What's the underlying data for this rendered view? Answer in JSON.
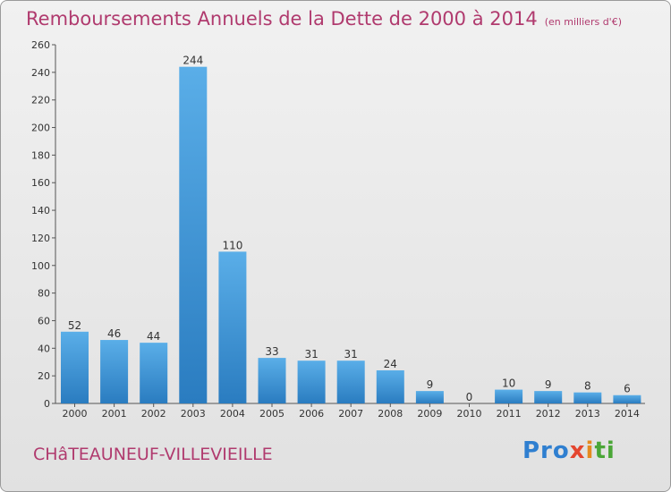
{
  "title": "Remboursements Annuels de la Dette de 2000 à 2014",
  "subtitle": "(en milliers d'€)",
  "commune": "CHâTEAUNEUF-VILLEVIEILLE",
  "logo": {
    "p1": "Pro",
    "p2": "x",
    "p3": "i",
    "p4": "ti"
  },
  "colors": {
    "title": "#b03a6e",
    "bar_light": "#5aaee8",
    "bar_dark": "#2a7cc0"
  },
  "chart_data": {
    "type": "bar",
    "title": "Remboursements Annuels de la Dette de 2000 à 2014",
    "subtitle": "(en milliers d'€)",
    "categories": [
      "2000",
      "2001",
      "2002",
      "2003",
      "2004",
      "2005",
      "2006",
      "2007",
      "2008",
      "2009",
      "2010",
      "2011",
      "2012",
      "2013",
      "2014"
    ],
    "values": [
      52,
      46,
      44,
      244,
      110,
      33,
      31,
      31,
      24,
      9,
      0,
      10,
      9,
      8,
      6
    ],
    "ylim": [
      0,
      260
    ],
    "yticks": [
      0,
      20,
      40,
      60,
      80,
      100,
      120,
      140,
      160,
      180,
      200,
      220,
      240,
      260
    ],
    "grid": false,
    "legend": "none"
  }
}
